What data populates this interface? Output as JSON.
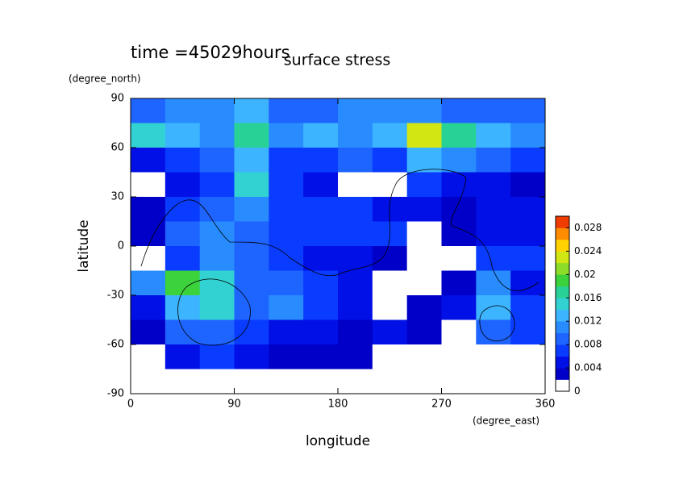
{
  "chart_data": {
    "type": "contour",
    "title": "surface stress",
    "annotation": "time =45029hours",
    "x_label": "longitude",
    "x_unit": "(degree_east)",
    "y_label": "latitude",
    "y_unit": "(degree_north)",
    "xlim": [
      0,
      360
    ],
    "xticks": [
      0,
      90,
      180,
      270,
      360
    ],
    "ylim": [
      -90,
      90
    ],
    "yticks": [
      -90,
      -60,
      -30,
      0,
      30,
      60,
      90
    ],
    "x": [
      15,
      45,
      75,
      105,
      135,
      165,
      195,
      225,
      255,
      285,
      315,
      345
    ],
    "y": [
      82.5,
      67.5,
      52.5,
      37.5,
      22.5,
      7.5,
      -7.5,
      -22.5,
      -37.5,
      -52.5,
      -67.5,
      -82.5
    ],
    "values": [
      [
        0.008,
        0.01,
        0.01,
        0.012,
        0.008,
        0.008,
        0.01,
        0.01,
        0.01,
        0.008,
        0.008,
        0.008
      ],
      [
        0.014,
        0.012,
        0.01,
        0.016,
        0.01,
        0.012,
        0.01,
        0.012,
        0.022,
        0.016,
        0.012,
        0.01
      ],
      [
        0.004,
        0.006,
        0.008,
        0.012,
        0.006,
        0.006,
        0.008,
        0.006,
        0.012,
        0.01,
        0.008,
        0.006
      ],
      [
        0,
        0.004,
        0.006,
        0.014,
        0.006,
        0.004,
        0,
        0,
        0.006,
        0.004,
        0.004,
        0.002
      ],
      [
        0.002,
        0.006,
        0.008,
        0.01,
        0.006,
        0.006,
        0.006,
        0.004,
        0.004,
        0.002,
        0.004,
        0.004
      ],
      [
        0.002,
        0.008,
        0.01,
        0.008,
        0.006,
        0.006,
        0.006,
        0.006,
        0,
        0.002,
        0.004,
        0.004
      ],
      [
        0,
        0.006,
        0.01,
        0.008,
        0.006,
        0.004,
        0.004,
        0.002,
        0,
        0,
        0.006,
        0.006
      ],
      [
        0.01,
        0.018,
        0.014,
        0.008,
        0.008,
        0.006,
        0.004,
        0,
        0,
        0.002,
        0.01,
        0.004
      ],
      [
        0.004,
        0.012,
        0.014,
        0.008,
        0.01,
        0.006,
        0.004,
        0,
        0.002,
        0.004,
        0.012,
        0.006
      ],
      [
        0.002,
        0.008,
        0.008,
        0.006,
        0.004,
        0.004,
        0.002,
        0.004,
        0.002,
        0,
        0.008,
        0.006
      ],
      [
        0,
        0.004,
        0.006,
        0.004,
        0.002,
        0.002,
        0.002,
        0,
        0,
        0,
        0,
        0
      ],
      [
        0,
        0,
        0,
        0,
        0,
        0,
        0,
        0,
        0,
        0,
        0,
        0
      ]
    ],
    "levels": [
      0,
      0.002,
      0.004,
      0.006,
      0.008,
      0.01,
      0.012,
      0.014,
      0.016,
      0.018,
      0.02,
      0.022,
      0.024,
      0.026,
      0.028,
      0.03
    ],
    "colors": [
      "#ffffff",
      "#0000c8",
      "#0010e6",
      "#0a3cff",
      "#1e64ff",
      "#288cff",
      "#3cb4ff",
      "#32d2d2",
      "#28d296",
      "#3cd23c",
      "#8cdc28",
      "#d2e614",
      "#ffd200",
      "#ff8c00",
      "#f03c00"
    ],
    "colorbar_ticks": [
      0,
      0.004,
      0.008,
      0.012,
      0.016,
      0.02,
      0.024,
      0.028
    ]
  }
}
